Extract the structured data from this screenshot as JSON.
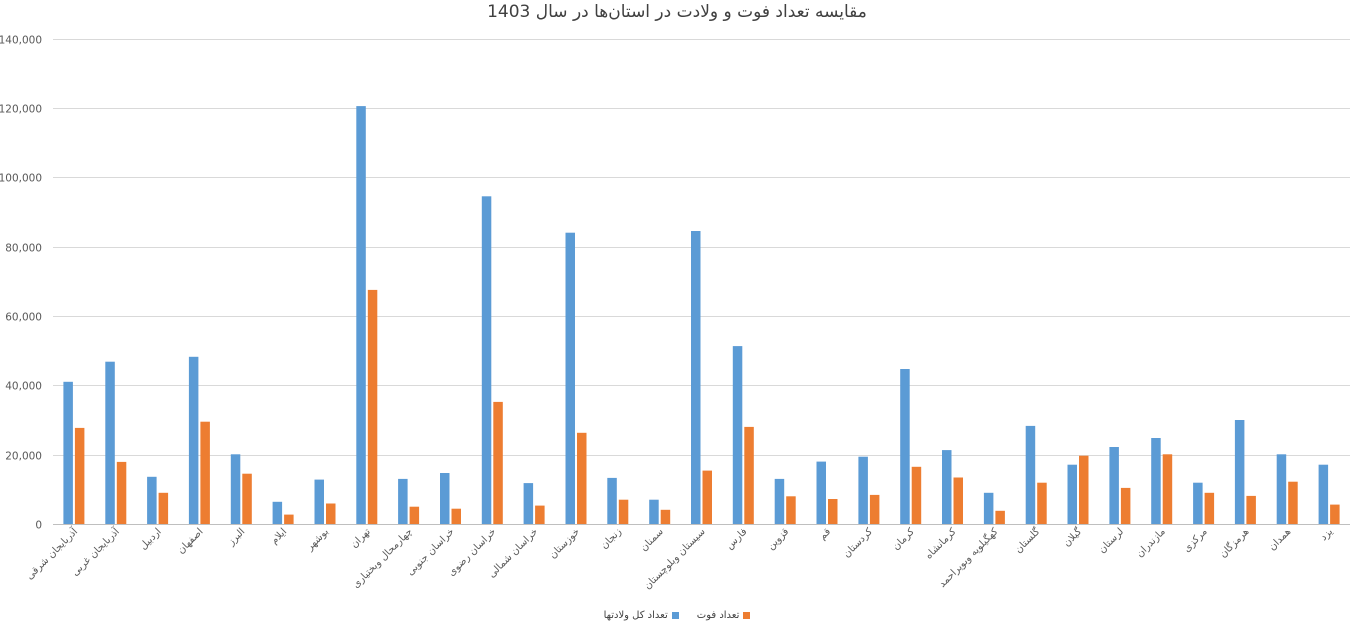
{
  "chart_data": {
    "type": "bar",
    "title": "مقایسه تعداد فوت و ولادت در استان‌ها در سال 1403",
    "ylim": [
      0,
      140000
    ],
    "yticks": [
      0,
      20000,
      40000,
      60000,
      80000,
      100000,
      120000,
      140000
    ],
    "ytick_labels": [
      "0",
      "20,000",
      "40,000",
      "60,000",
      "80,000",
      "100,000",
      "120,000",
      "140,000"
    ],
    "grid": true,
    "legend_position": "bottom",
    "categories": [
      "آذربایجان شرقی",
      "آذربایجان غربی",
      "اردبیل",
      "اصفهان",
      "البرز",
      "ایلام",
      "بوشهر",
      "تهران",
      "چهارمحال وبختیاری",
      "خراسان جنوبی",
      "خراسان رضوی",
      "خراسان شمالی",
      "خوزستان",
      "زنجان",
      "سمنان",
      "سیستان وبلوچستان",
      "فارس",
      "قزوین",
      "قم",
      "کردستان",
      "کرمان",
      "کرمانشاه",
      "کهگیلویه وبویراحمد",
      "گلستان",
      "گیلان",
      "لرستان",
      "مازندران",
      "مرکزی",
      "هرمزگان",
      "همدان",
      "یزد"
    ],
    "series": [
      {
        "name": "تعداد کل ولادتها",
        "color": "#5b9bd5",
        "values": [
          41000,
          46800,
          13600,
          48200,
          20100,
          6400,
          12800,
          120500,
          13000,
          14700,
          94500,
          11800,
          84000,
          13300,
          7000,
          84500,
          51300,
          13000,
          18000,
          19400,
          44700,
          21300,
          9000,
          28300,
          17100,
          22200,
          24800,
          11900,
          30000,
          20100,
          17100
        ]
      },
      {
        "name": "تعداد فوت",
        "color": "#ed7d31",
        "values": [
          27700,
          17900,
          9000,
          29500,
          14500,
          2700,
          5900,
          67500,
          5000,
          4400,
          35200,
          5300,
          26300,
          7000,
          4100,
          15400,
          28000,
          8000,
          7200,
          8400,
          16500,
          13400,
          3800,
          11900,
          19700,
          10400,
          20100,
          9000,
          8100,
          12200,
          5600
        ]
      }
    ]
  }
}
